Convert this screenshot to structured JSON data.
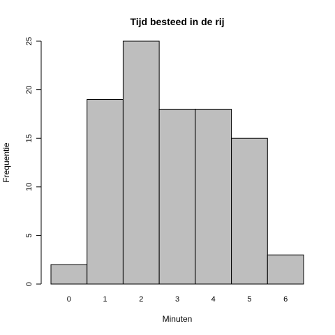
{
  "chart_data": {
    "type": "bar",
    "title": "Tijd besteed in de rij",
    "xlabel": "Minuten",
    "ylabel": "Frequentie",
    "categories": [
      "0",
      "1",
      "2",
      "3",
      "4",
      "5",
      "6"
    ],
    "values": [
      2,
      19,
      25,
      18,
      18,
      15,
      3
    ],
    "yticks": [
      0,
      5,
      10,
      15,
      20,
      25
    ],
    "ylim": [
      0,
      25
    ],
    "grid": false,
    "legend": "none",
    "colors": {
      "bar_fill": "#bebebe",
      "bar_stroke": "#000000",
      "background": "#ffffff"
    }
  }
}
